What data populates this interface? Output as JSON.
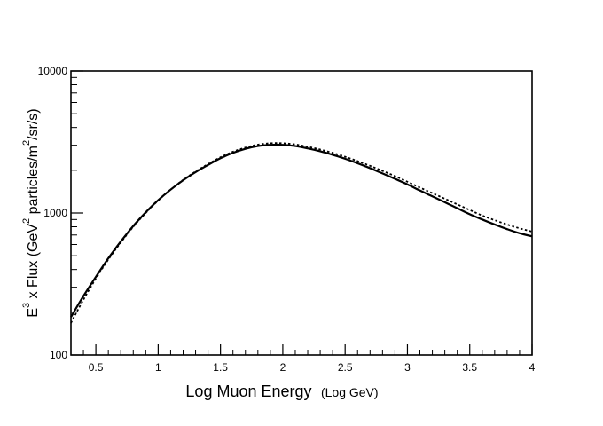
{
  "chart_data": {
    "type": "line",
    "title": "",
    "xlabel": "Log Muon Energy",
    "xlabel_units": "(Log GeV)",
    "ylabel_parts": {
      "lead": "E",
      "lead_sup": "3",
      "mid": " x Flux (GeV",
      "mid_sup": "2",
      "tail": " particles/m",
      "tail_sup": "2",
      "end": "/sr/s)"
    },
    "xlim": [
      0.3,
      4.0
    ],
    "ylim": [
      100,
      10000
    ],
    "yscale": "log",
    "grid": false,
    "xticks": [
      {
        "value": 0.5,
        "label": "0.5"
      },
      {
        "value": 1,
        "label": "1"
      },
      {
        "value": 1.5,
        "label": "1.5"
      },
      {
        "value": 2,
        "label": "2"
      },
      {
        "value": 2.5,
        "label": "2.5"
      },
      {
        "value": 3,
        "label": "3"
      },
      {
        "value": 3.5,
        "label": "3.5"
      },
      {
        "value": 4,
        "label": "4"
      }
    ],
    "yticks": [
      {
        "value": 100,
        "label": "100"
      },
      {
        "value": 1000,
        "label": "1000"
      },
      {
        "value": 10000,
        "label": "10000"
      }
    ],
    "series": [
      {
        "name": "solid",
        "style": "solid",
        "x": [
          0.3,
          0.4,
          0.5,
          0.6,
          0.7,
          0.8,
          0.9,
          1.0,
          1.1,
          1.2,
          1.3,
          1.4,
          1.5,
          1.6,
          1.7,
          1.8,
          1.9,
          2.0,
          2.1,
          2.2,
          2.3,
          2.4,
          2.5,
          2.6,
          2.7,
          2.8,
          2.9,
          3.0,
          3.1,
          3.2,
          3.3,
          3.4,
          3.5,
          3.6,
          3.7,
          3.8,
          3.9,
          4.0
        ],
        "y": [
          185,
          260,
          355,
          480,
          630,
          810,
          1010,
          1230,
          1460,
          1700,
          1940,
          2180,
          2430,
          2650,
          2830,
          2960,
          3020,
          3020,
          2960,
          2850,
          2720,
          2570,
          2410,
          2240,
          2070,
          1900,
          1740,
          1590,
          1440,
          1310,
          1190,
          1080,
          980,
          900,
          830,
          770,
          720,
          685
        ]
      },
      {
        "name": "dotted",
        "style": "dotted",
        "x": [
          0.3,
          0.4,
          0.5,
          0.6,
          0.7,
          0.8,
          0.9,
          1.0,
          1.1,
          1.2,
          1.3,
          1.4,
          1.5,
          1.6,
          1.7,
          1.8,
          1.9,
          2.0,
          2.1,
          2.2,
          2.3,
          2.4,
          2.5,
          2.6,
          2.7,
          2.8,
          2.9,
          3.0,
          3.1,
          3.2,
          3.3,
          3.4,
          3.5,
          3.6,
          3.7,
          3.8,
          3.9,
          4.0
        ],
        "y": [
          168,
          245,
          345,
          470,
          620,
          800,
          1000,
          1225,
          1460,
          1710,
          1960,
          2210,
          2470,
          2700,
          2890,
          3030,
          3100,
          3100,
          3040,
          2930,
          2800,
          2650,
          2490,
          2320,
          2150,
          1980,
          1820,
          1660,
          1510,
          1380,
          1260,
          1150,
          1050,
          960,
          890,
          830,
          780,
          740
        ]
      }
    ]
  }
}
